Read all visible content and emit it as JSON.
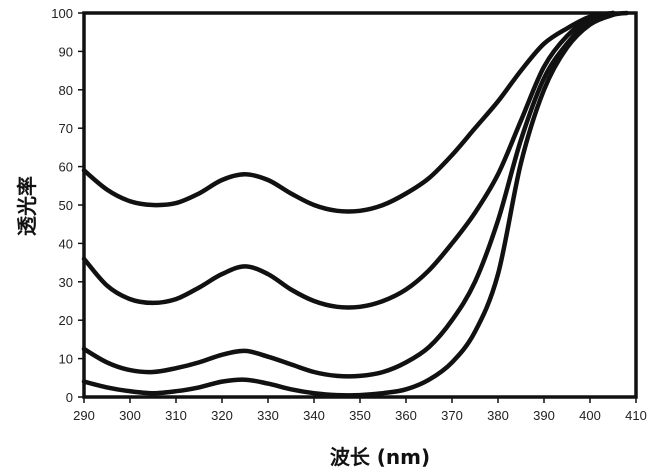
{
  "chart_data": {
    "type": "line",
    "title": "",
    "xlabel": "波长 (nm)",
    "ylabel": "透光率",
    "xlim": [
      290,
      410
    ],
    "ylim": [
      0,
      100
    ],
    "xticks": [
      290,
      300,
      310,
      320,
      330,
      340,
      350,
      360,
      370,
      380,
      390,
      400,
      410
    ],
    "yticks": [
      0,
      10,
      20,
      30,
      40,
      50,
      60,
      70,
      80,
      90,
      100
    ],
    "grid": false,
    "legend": false,
    "line_color": "#111111",
    "series": [
      {
        "points": [
          [
            290,
            59
          ],
          [
            295,
            54
          ],
          [
            300,
            51
          ],
          [
            305,
            50
          ],
          [
            310,
            50.5
          ],
          [
            315,
            53
          ],
          [
            320,
            56.5
          ],
          [
            325,
            58
          ],
          [
            330,
            56.5
          ],
          [
            335,
            53
          ],
          [
            340,
            50
          ],
          [
            345,
            48.5
          ],
          [
            350,
            48.5
          ],
          [
            355,
            50
          ],
          [
            360,
            53
          ],
          [
            365,
            57
          ],
          [
            370,
            63
          ],
          [
            375,
            70
          ],
          [
            380,
            77
          ],
          [
            385,
            85
          ],
          [
            390,
            92
          ],
          [
            395,
            96
          ],
          [
            400,
            99
          ],
          [
            405,
            100
          ]
        ]
      },
      {
        "points": [
          [
            290,
            36
          ],
          [
            295,
            29
          ],
          [
            300,
            25.5
          ],
          [
            305,
            24.5
          ],
          [
            310,
            25.5
          ],
          [
            315,
            28.5
          ],
          [
            320,
            32
          ],
          [
            325,
            34
          ],
          [
            330,
            32
          ],
          [
            335,
            28
          ],
          [
            340,
            25
          ],
          [
            345,
            23.5
          ],
          [
            350,
            23.5
          ],
          [
            355,
            25
          ],
          [
            360,
            28
          ],
          [
            365,
            33
          ],
          [
            370,
            40
          ],
          [
            375,
            48
          ],
          [
            380,
            58
          ],
          [
            385,
            72
          ],
          [
            390,
            86
          ],
          [
            395,
            94
          ],
          [
            400,
            98.5
          ],
          [
            405,
            100
          ]
        ]
      },
      {
        "points": [
          [
            290,
            12.5
          ],
          [
            295,
            9
          ],
          [
            300,
            7
          ],
          [
            305,
            6.5
          ],
          [
            310,
            7.5
          ],
          [
            315,
            9
          ],
          [
            320,
            11
          ],
          [
            325,
            12
          ],
          [
            330,
            10.5
          ],
          [
            335,
            8.5
          ],
          [
            340,
            6.5
          ],
          [
            345,
            5.5
          ],
          [
            350,
            5.5
          ],
          [
            355,
            6.5
          ],
          [
            360,
            9
          ],
          [
            365,
            13
          ],
          [
            370,
            20
          ],
          [
            375,
            30
          ],
          [
            380,
            46
          ],
          [
            385,
            67
          ],
          [
            390,
            83
          ],
          [
            395,
            92
          ],
          [
            400,
            98
          ],
          [
            405,
            100
          ]
        ]
      },
      {
        "points": [
          [
            290,
            4
          ],
          [
            295,
            2.5
          ],
          [
            300,
            1.5
          ],
          [
            305,
            1
          ],
          [
            310,
            1.5
          ],
          [
            315,
            2.5
          ],
          [
            320,
            4
          ],
          [
            325,
            4.5
          ],
          [
            330,
            3.5
          ],
          [
            335,
            2
          ],
          [
            340,
            1
          ],
          [
            345,
            0.5
          ],
          [
            350,
            0.5
          ],
          [
            355,
            1
          ],
          [
            360,
            2
          ],
          [
            365,
            4.5
          ],
          [
            370,
            9
          ],
          [
            375,
            17
          ],
          [
            380,
            32
          ],
          [
            385,
            61
          ],
          [
            390,
            80
          ],
          [
            395,
            91
          ],
          [
            400,
            97
          ],
          [
            405,
            99.5
          ],
          [
            408,
            100
          ]
        ]
      }
    ]
  }
}
